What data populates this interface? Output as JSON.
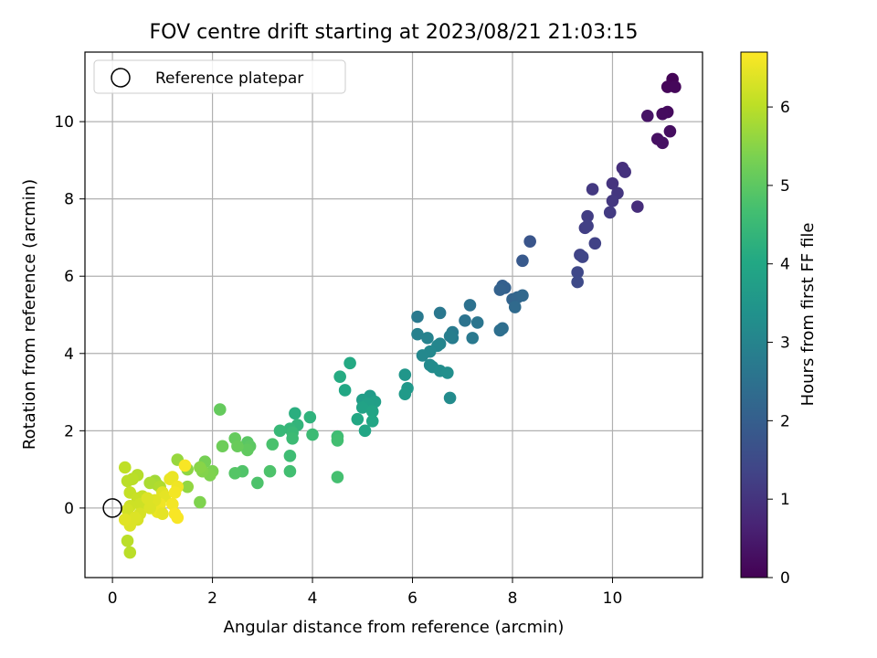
{
  "chart_data": {
    "type": "scatter",
    "title": "FOV centre drift starting at 2023/08/21 21:03:15",
    "xlabel": "Angular distance from reference (arcmin)",
    "ylabel": "Rotation from reference (arcmin)",
    "xlim": [
      -0.55,
      11.8
    ],
    "ylim": [
      -1.8,
      11.8
    ],
    "xticks": [
      0,
      2,
      4,
      6,
      8,
      10
    ],
    "yticks": [
      0,
      2,
      4,
      6,
      8,
      10
    ],
    "grid": true,
    "colormap": "viridis",
    "colorbar": {
      "label": "Hours from first FF file",
      "range": [
        0,
        6.7
      ],
      "ticks": [
        0,
        1,
        2,
        3,
        4,
        5,
        6
      ]
    },
    "legend": {
      "position": "top-left",
      "entries": [
        "Reference platepar"
      ]
    },
    "reference_point": {
      "x": 0,
      "y": 0
    },
    "series": [
      {
        "points": [
          [
            11.2,
            11.1,
            0.05
          ],
          [
            11.1,
            10.9,
            0.1
          ],
          [
            11.25,
            10.9,
            0.12
          ],
          [
            11.1,
            10.25,
            0.18
          ],
          [
            10.7,
            10.15,
            0.35
          ],
          [
            11.0,
            10.2,
            0.2
          ],
          [
            11.15,
            9.75,
            0.25
          ],
          [
            10.9,
            9.55,
            0.28
          ],
          [
            11.0,
            9.45,
            0.3
          ],
          [
            10.2,
            8.8,
            0.9
          ],
          [
            10.25,
            8.7,
            0.95
          ],
          [
            9.6,
            8.25,
            1.1
          ],
          [
            10.0,
            8.4,
            1.0
          ],
          [
            10.1,
            8.15,
            1.05
          ],
          [
            10.0,
            7.95,
            1.08
          ],
          [
            10.5,
            7.8,
            0.85
          ],
          [
            9.95,
            7.65,
            1.15
          ],
          [
            9.5,
            7.55,
            1.2
          ],
          [
            9.45,
            7.25,
            1.22
          ],
          [
            9.5,
            7.3,
            1.25
          ],
          [
            9.65,
            6.85,
            1.3
          ],
          [
            9.35,
            6.55,
            1.35
          ],
          [
            9.4,
            6.5,
            1.4
          ],
          [
            9.3,
            6.1,
            1.45
          ],
          [
            9.3,
            5.85,
            1.5
          ],
          [
            8.35,
            6.9,
            1.75
          ],
          [
            8.2,
            6.4,
            1.85
          ],
          [
            7.8,
            5.75,
            2.0
          ],
          [
            7.85,
            5.7,
            2.05
          ],
          [
            7.75,
            5.65,
            2.1
          ],
          [
            8.0,
            5.4,
            2.15
          ],
          [
            8.1,
            5.45,
            2.2
          ],
          [
            8.2,
            5.5,
            2.25
          ],
          [
            8.05,
            5.2,
            2.3
          ],
          [
            7.15,
            5.25,
            2.5
          ],
          [
            7.05,
            4.85,
            2.55
          ],
          [
            7.3,
            4.8,
            2.6
          ],
          [
            7.8,
            4.65,
            2.4
          ],
          [
            7.75,
            4.6,
            2.45
          ],
          [
            6.55,
            5.05,
            2.65
          ],
          [
            6.1,
            4.95,
            2.7
          ],
          [
            6.8,
            4.55,
            2.75
          ],
          [
            6.8,
            4.4,
            2.8
          ],
          [
            6.75,
            4.45,
            2.85
          ],
          [
            7.2,
            4.4,
            2.7
          ],
          [
            6.1,
            4.5,
            2.9
          ],
          [
            6.3,
            4.4,
            2.95
          ],
          [
            6.55,
            4.25,
            3.0
          ],
          [
            6.5,
            4.2,
            3.05
          ],
          [
            6.35,
            4.05,
            3.1
          ],
          [
            6.2,
            3.95,
            3.1
          ],
          [
            6.35,
            3.7,
            3.15
          ],
          [
            6.4,
            3.65,
            3.2
          ],
          [
            6.55,
            3.55,
            3.25
          ],
          [
            6.7,
            3.5,
            3.3
          ],
          [
            6.75,
            2.85,
            3.2
          ],
          [
            5.85,
            3.45,
            3.5
          ],
          [
            5.9,
            3.1,
            3.55
          ],
          [
            5.85,
            2.95,
            3.6
          ],
          [
            5.15,
            2.9,
            3.65
          ],
          [
            5.0,
            2.8,
            3.7
          ],
          [
            5.25,
            2.75,
            3.75
          ],
          [
            5.1,
            2.7,
            3.8
          ],
          [
            5.0,
            2.6,
            3.85
          ],
          [
            5.2,
            2.5,
            3.9
          ],
          [
            5.2,
            2.25,
            3.95
          ],
          [
            5.05,
            2.0,
            3.95
          ],
          [
            4.9,
            2.3,
            4.0
          ],
          [
            4.65,
            3.05,
            4.0
          ],
          [
            4.75,
            3.75,
            4.05
          ],
          [
            4.55,
            3.4,
            4.1
          ],
          [
            3.65,
            2.45,
            4.2
          ],
          [
            3.95,
            2.35,
            4.3
          ],
          [
            3.7,
            2.15,
            4.35
          ],
          [
            3.55,
            2.05,
            4.4
          ],
          [
            3.35,
            2.0,
            4.45
          ],
          [
            3.6,
            1.95,
            4.5
          ],
          [
            3.6,
            1.8,
            4.55
          ],
          [
            3.55,
            1.35,
            4.6
          ],
          [
            3.55,
            0.95,
            4.65
          ],
          [
            4.0,
            1.9,
            4.55
          ],
          [
            4.5,
            1.85,
            4.6
          ],
          [
            4.5,
            1.75,
            4.65
          ],
          [
            4.5,
            0.8,
            4.7
          ],
          [
            3.2,
            1.65,
            4.75
          ],
          [
            2.9,
            0.65,
            4.8
          ],
          [
            3.15,
            0.95,
            4.8
          ],
          [
            2.6,
            0.95,
            4.85
          ],
          [
            2.45,
            0.9,
            4.9
          ],
          [
            2.7,
            1.7,
            4.95
          ],
          [
            2.75,
            1.6,
            5.0
          ],
          [
            2.7,
            1.5,
            5.05
          ],
          [
            2.45,
            1.8,
            5.1
          ],
          [
            2.5,
            1.6,
            5.15
          ],
          [
            2.2,
            1.6,
            5.2
          ],
          [
            2.15,
            2.55,
            5.1
          ],
          [
            1.85,
            1.2,
            5.3
          ],
          [
            2.0,
            0.95,
            5.35
          ],
          [
            1.95,
            0.85,
            5.4
          ],
          [
            1.8,
            0.95,
            5.45
          ],
          [
            1.75,
            1.05,
            5.5
          ],
          [
            1.5,
            1.0,
            5.55
          ],
          [
            1.5,
            0.55,
            5.6
          ],
          [
            1.3,
            1.25,
            5.65
          ],
          [
            1.75,
            0.15,
            5.4
          ],
          [
            0.85,
            0.7,
            5.75
          ],
          [
            0.9,
            0.6,
            5.8
          ],
          [
            0.75,
            0.65,
            5.85
          ],
          [
            0.95,
            0.55,
            5.9
          ],
          [
            0.5,
            0.85,
            5.95
          ],
          [
            0.4,
            0.75,
            6.0
          ],
          [
            0.3,
            0.7,
            6.0
          ],
          [
            0.25,
            1.05,
            6.05
          ],
          [
            0.35,
            0.4,
            6.1
          ],
          [
            0.6,
            0.3,
            6.1
          ],
          [
            0.5,
            0.25,
            6.15
          ],
          [
            0.55,
            0.1,
            6.2
          ],
          [
            0.35,
            0.05,
            6.2
          ],
          [
            0.3,
            -0.05,
            6.25
          ],
          [
            0.55,
            -0.15,
            6.3
          ],
          [
            0.5,
            -0.3,
            6.3
          ],
          [
            0.45,
            -0.25,
            6.35
          ],
          [
            0.35,
            -0.45,
            6.35
          ],
          [
            0.25,
            -0.3,
            6.4
          ],
          [
            0.3,
            -0.85,
            6.0
          ],
          [
            0.35,
            -1.15,
            6.0
          ],
          [
            1.0,
            0.4,
            6.4
          ],
          [
            1.05,
            0.3,
            6.45
          ],
          [
            1.15,
            0.75,
            6.5
          ],
          [
            1.2,
            0.8,
            6.5
          ],
          [
            1.3,
            0.55,
            6.55
          ],
          [
            1.25,
            0.4,
            6.6
          ],
          [
            1.2,
            0.1,
            6.6
          ],
          [
            1.25,
            -0.15,
            6.65
          ],
          [
            1.3,
            -0.25,
            6.65
          ],
          [
            0.95,
            0.1,
            6.55
          ],
          [
            0.9,
            -0.1,
            6.5
          ],
          [
            1.0,
            -0.15,
            6.45
          ],
          [
            1.45,
            1.1,
            6.65
          ],
          [
            0.85,
            0.2,
            6.4
          ],
          [
            0.7,
            0.25,
            6.35
          ],
          [
            0.75,
            0.0,
            6.35
          ]
        ]
      }
    ]
  }
}
